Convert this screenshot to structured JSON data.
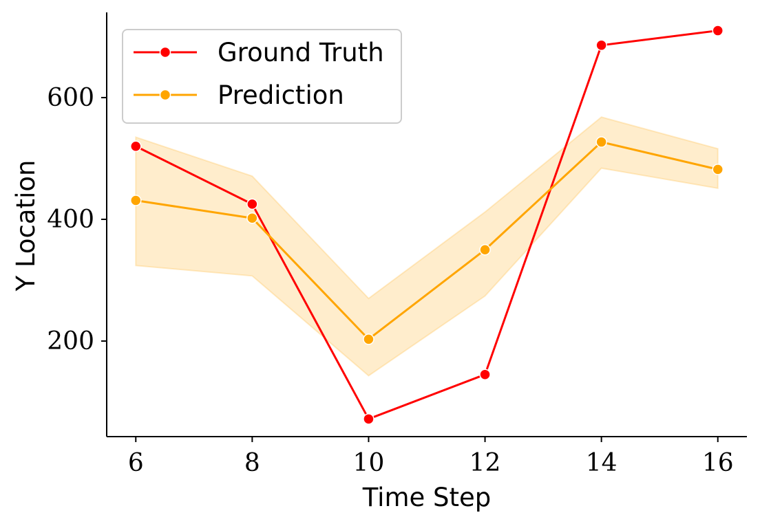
{
  "chart_data": {
    "type": "line",
    "title": "",
    "xlabel": "Time Step",
    "ylabel": "Y Location",
    "x": [
      6,
      8,
      10,
      12,
      14,
      16
    ],
    "xlim": [
      5.5,
      16.5
    ],
    "ylim": [
      43,
      740
    ],
    "xticks": [
      6,
      8,
      10,
      12,
      14,
      16
    ],
    "yticks": [
      200,
      400,
      600
    ],
    "grid": false,
    "legend_position": "top-left",
    "series": [
      {
        "name": "Ground Truth",
        "color": "#ff0000",
        "values": [
          520,
          425,
          72,
          145,
          686,
          710
        ]
      },
      {
        "name": "Prediction",
        "color": "#ffa500",
        "values": [
          431,
          402,
          203,
          350,
          527,
          482
        ],
        "band_lower": [
          324,
          307,
          143,
          274,
          484,
          451
        ],
        "band_upper": [
          535,
          471,
          270,
          412,
          568,
          516
        ]
      }
    ]
  }
}
